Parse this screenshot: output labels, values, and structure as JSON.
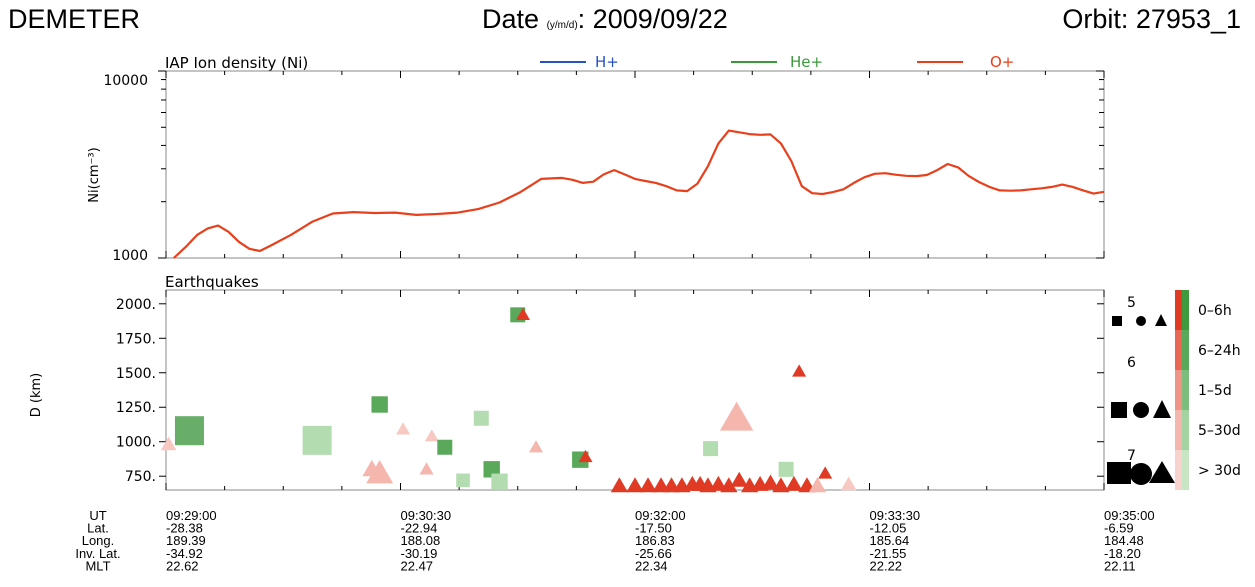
{
  "header": {
    "left": "DEMETER",
    "date_label": "Date",
    "date_sub": "(y/m/d)",
    "date_value": ": 2009/09/22",
    "orbit": "Orbit: 27953_1"
  },
  "chart_data": [
    {
      "type": "line",
      "title": "IAP Ion density (Ni)",
      "ylabel": "Ni(cm⁻³)",
      "yscale": "log",
      "ylim": [
        1000,
        10000
      ],
      "ytick_labels": [
        "10000",
        "1000"
      ],
      "x_unit": "seconds since 09:29:00",
      "xlim": [
        0,
        360
      ],
      "legend": [
        {
          "name": "H+",
          "color": "#2850c8"
        },
        {
          "name": "He+",
          "color": "#3a9a3a"
        },
        {
          "name": "O+",
          "color": "#e8401c"
        }
      ],
      "series": [
        {
          "name": "O+",
          "color": "#e8401c",
          "x": [
            3,
            8,
            12,
            16,
            20,
            24,
            28,
            32,
            36,
            40,
            48,
            56,
            64,
            72,
            80,
            88,
            96,
            104,
            112,
            120,
            128,
            136,
            144,
            152,
            156,
            160,
            164,
            168,
            172,
            176,
            180,
            184,
            188,
            192,
            196,
            200,
            204,
            208,
            212,
            216,
            220,
            224,
            228,
            232,
            236,
            240,
            244,
            248,
            252,
            256,
            260,
            264,
            268,
            272,
            276,
            280,
            284,
            288,
            292,
            296,
            300,
            304,
            308,
            312,
            316,
            320,
            324,
            328,
            332,
            336,
            340,
            344,
            348,
            352,
            356,
            360
          ],
          "y": [
            1000,
            1160,
            1330,
            1440,
            1490,
            1380,
            1220,
            1120,
            1090,
            1160,
            1330,
            1560,
            1730,
            1760,
            1740,
            1750,
            1700,
            1720,
            1750,
            1830,
            1980,
            2250,
            2650,
            2680,
            2620,
            2520,
            2560,
            2800,
            2950,
            2800,
            2650,
            2580,
            2520,
            2420,
            2300,
            2280,
            2500,
            3100,
            4100,
            4800,
            4700,
            4600,
            4560,
            4580,
            4100,
            3300,
            2420,
            2220,
            2200,
            2250,
            2330,
            2520,
            2700,
            2820,
            2840,
            2790,
            2750,
            2740,
            2780,
            2950,
            3180,
            3050,
            2750,
            2550,
            2400,
            2300,
            2290,
            2300,
            2330,
            2360,
            2400,
            2470,
            2400,
            2300,
            2210,
            2260
          ]
        }
      ]
    },
    {
      "type": "scatter",
      "title": "Earthquakes",
      "ylabel": "D (km)",
      "ylim": [
        650,
        2100
      ],
      "ytick_labels": [
        "2000.",
        "1750.",
        "1500.",
        "1250.",
        "1000.",
        "750."
      ],
      "x_unit": "seconds since 09:29:00",
      "xlim": [
        0,
        360
      ],
      "marker_legend": [
        {
          "magnitude": "5",
          "markers": [
            "square",
            "circle",
            "triangle"
          ]
        },
        {
          "magnitude": "6",
          "markers": [
            "square",
            "circle",
            "triangle"
          ]
        },
        {
          "magnitude": "7",
          "markers": [
            "square",
            "circle",
            "triangle"
          ]
        }
      ],
      "color_legend": [
        {
          "label": "0–6h",
          "colors": [
            "#e03a25",
            "#3f9a3f"
          ]
        },
        {
          "label": "6–24h",
          "colors": [
            "#eb6755",
            "#5aa85a"
          ]
        },
        {
          "label": "1–5d",
          "colors": [
            "#f19488",
            "#7cbc7c"
          ]
        },
        {
          "label": "5–30d",
          "colors": [
            "#f5b6ae",
            "#a3d3a0"
          ]
        },
        {
          "label": "> 30d",
          "colors": [
            "#f8d2cc",
            "#c8e5c4"
          ]
        }
      ],
      "points": [
        {
          "x": 1,
          "d": 980,
          "shape": "triangle",
          "color": "#f7c9c2",
          "mag": 5.4
        },
        {
          "x": 9,
          "d": 1080,
          "shape": "square",
          "color": "#68ae68",
          "mag": 6.5
        },
        {
          "x": 58,
          "d": 1010,
          "shape": "square",
          "color": "#b3dcb0",
          "mag": 6.5
        },
        {
          "x": 79,
          "d": 800,
          "shape": "triangle",
          "color": "#f5b6ae",
          "mag": 5.6
        },
        {
          "x": 82,
          "d": 770,
          "shape": "triangle",
          "color": "#f5b6ae",
          "mag": 6.1
        },
        {
          "x": 82,
          "d": 1270,
          "shape": "square",
          "color": "#5aa85a",
          "mag": 5.6
        },
        {
          "x": 91,
          "d": 1090,
          "shape": "triangle",
          "color": "#f7c9c2",
          "mag": 5.3
        },
        {
          "x": 100,
          "d": 800,
          "shape": "triangle",
          "color": "#f5b6ae",
          "mag": 5.3
        },
        {
          "x": 102,
          "d": 1040,
          "shape": "triangle",
          "color": "#f7c9c2",
          "mag": 5.3
        },
        {
          "x": 107,
          "d": 960,
          "shape": "square",
          "color": "#5aa85a",
          "mag": 5.5
        },
        {
          "x": 114,
          "d": 720,
          "shape": "square",
          "color": "#b3dcb0",
          "mag": 5.4
        },
        {
          "x": 121,
          "d": 1170,
          "shape": "square",
          "color": "#b3dcb0",
          "mag": 5.5
        },
        {
          "x": 125,
          "d": 800,
          "shape": "square",
          "color": "#5aa85a",
          "mag": 5.6
        },
        {
          "x": 128,
          "d": 710,
          "shape": "square",
          "color": "#b3dcb0",
          "mag": 5.6
        },
        {
          "x": 135,
          "d": 1920,
          "shape": "square",
          "color": "#5aa85a",
          "mag": 5.5
        },
        {
          "x": 137,
          "d": 1920,
          "shape": "triangle",
          "color": "#e03a25",
          "mag": 5.3
        },
        {
          "x": 142,
          "d": 960,
          "shape": "triangle",
          "color": "#f5b6ae",
          "mag": 5.3
        },
        {
          "x": 159,
          "d": 870,
          "shape": "square",
          "color": "#5aa85a",
          "mag": 5.6
        },
        {
          "x": 161,
          "d": 890,
          "shape": "triangle",
          "color": "#e03a25",
          "mag": 5.3
        },
        {
          "x": 174,
          "d": 680,
          "shape": "triangle",
          "color": "#e03a25",
          "mag": 5.5
        },
        {
          "x": 180,
          "d": 680,
          "shape": "triangle",
          "color": "#e03a25",
          "mag": 5.5
        },
        {
          "x": 185,
          "d": 680,
          "shape": "triangle",
          "color": "#e03a25",
          "mag": 5.5
        },
        {
          "x": 190,
          "d": 680,
          "shape": "triangle",
          "color": "#e03a25",
          "mag": 5.5
        },
        {
          "x": 194,
          "d": 680,
          "shape": "triangle",
          "color": "#e03a25",
          "mag": 5.5
        },
        {
          "x": 198,
          "d": 680,
          "shape": "triangle",
          "color": "#e03a25",
          "mag": 5.5
        },
        {
          "x": 202,
          "d": 690,
          "shape": "triangle",
          "color": "#e03a25",
          "mag": 5.5
        },
        {
          "x": 205,
          "d": 690,
          "shape": "triangle",
          "color": "#e03a25",
          "mag": 5.5
        },
        {
          "x": 208,
          "d": 680,
          "shape": "triangle",
          "color": "#e03a25",
          "mag": 5.5
        },
        {
          "x": 209,
          "d": 950,
          "shape": "square",
          "color": "#b3dcb0",
          "mag": 5.5
        },
        {
          "x": 212,
          "d": 690,
          "shape": "triangle",
          "color": "#e03a25",
          "mag": 5.5
        },
        {
          "x": 216,
          "d": 680,
          "shape": "triangle",
          "color": "#e03a25",
          "mag": 5.5
        },
        {
          "x": 219,
          "d": 1170,
          "shape": "triangle",
          "color": "#f5b6ae",
          "mag": 6.5
        },
        {
          "x": 220,
          "d": 720,
          "shape": "triangle",
          "color": "#e03a25",
          "mag": 5.5
        },
        {
          "x": 224,
          "d": 680,
          "shape": "triangle",
          "color": "#e03a25",
          "mag": 5.5
        },
        {
          "x": 228,
          "d": 690,
          "shape": "triangle",
          "color": "#e03a25",
          "mag": 5.5
        },
        {
          "x": 232,
          "d": 700,
          "shape": "triangle",
          "color": "#e03a25",
          "mag": 5.5
        },
        {
          "x": 236,
          "d": 680,
          "shape": "triangle",
          "color": "#e03a25",
          "mag": 5.5
        },
        {
          "x": 238,
          "d": 800,
          "shape": "square",
          "color": "#b3dcb0",
          "mag": 5.5
        },
        {
          "x": 241,
          "d": 690,
          "shape": "triangle",
          "color": "#e03a25",
          "mag": 5.5
        },
        {
          "x": 243,
          "d": 1510,
          "shape": "triangle",
          "color": "#e03a25",
          "mag": 5.3
        },
        {
          "x": 246,
          "d": 680,
          "shape": "triangle",
          "color": "#e03a25",
          "mag": 5.5
        },
        {
          "x": 250,
          "d": 680,
          "shape": "triangle",
          "color": "#f5b6ae",
          "mag": 5.5
        },
        {
          "x": 253,
          "d": 770,
          "shape": "triangle",
          "color": "#e03a25",
          "mag": 5.3
        },
        {
          "x": 262,
          "d": 690,
          "shape": "triangle",
          "color": "#f7c9c2",
          "mag": 5.4
        }
      ]
    }
  ],
  "info_rows": [
    {
      "label": "UT",
      "values": [
        "09:29:00",
        "09:30:30",
        "09:32:00",
        "09:33:30",
        "09:35:00"
      ]
    },
    {
      "label": "Lat.",
      "values": [
        "-28.38",
        "-22.94",
        "-17.50",
        "-12.05",
        "-6.59"
      ]
    },
    {
      "label": "Long.",
      "values": [
        "189.39",
        "188.08",
        "186.83",
        "185.64",
        "184.48"
      ]
    },
    {
      "label": "Inv. Lat.",
      "values": [
        "-34.92",
        "-30.19",
        "-25.66",
        "-21.55",
        "-18.20"
      ]
    },
    {
      "label": "MLT",
      "values": [
        "22.62",
        "22.47",
        "22.34",
        "22.22",
        "22.11"
      ]
    }
  ]
}
